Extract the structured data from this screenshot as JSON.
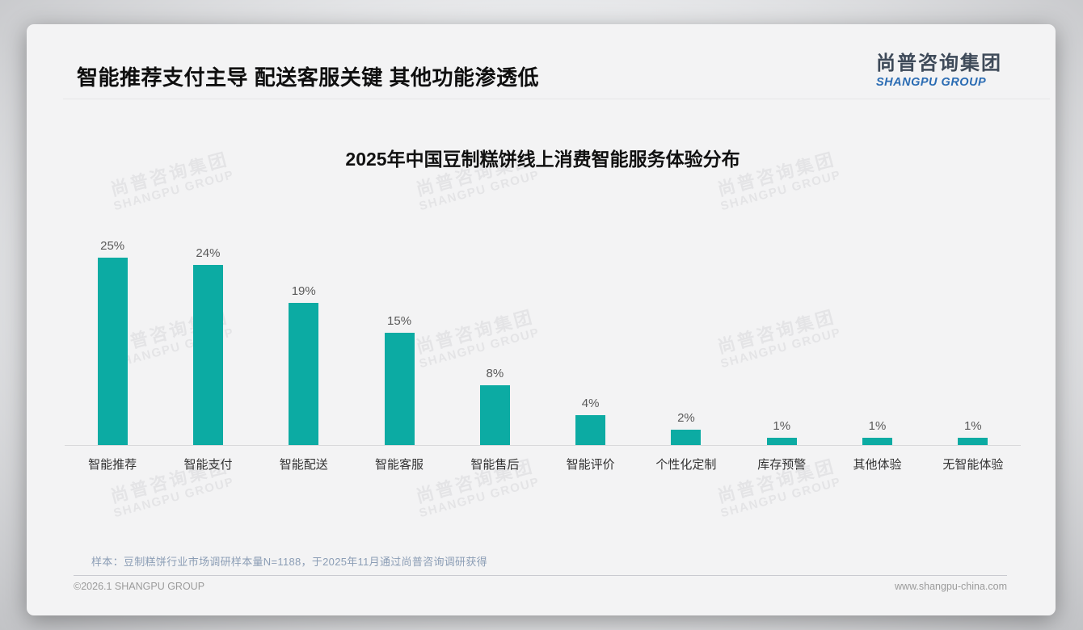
{
  "page": {
    "title": "智能推荐支付主导 配送客服关键 其他功能渗透低",
    "note": "样本：豆制糕饼行业市场调研样本量N=1188，于2025年11月通过尚普咨询调研获得",
    "copyright": "©2026.1 SHANGPU GROUP",
    "website": "www.shangpu-china.com"
  },
  "logo": {
    "cn": "尚普咨询集团",
    "en": "SHANGPU GROUP"
  },
  "watermark": {
    "cn": "尚普咨询集团",
    "en": "SHANGPU GROUP"
  },
  "colors": {
    "bar": "#0caba3",
    "logo_blue": "#2b6cb3",
    "logo_dark": "#3e4a59",
    "note_text": "#8b9db5"
  },
  "chart_data": {
    "type": "bar",
    "title": "2025年中国豆制糕饼线上消费智能服务体验分布",
    "categories": [
      "智能推荐",
      "智能支付",
      "智能配送",
      "智能客服",
      "智能售后",
      "智能评价",
      "个性化定制",
      "库存预警",
      "其他体验",
      "无智能体验"
    ],
    "values": [
      25,
      24,
      19,
      15,
      8,
      4,
      2,
      1,
      1,
      1
    ],
    "value_labels": [
      "25%",
      "24%",
      "19%",
      "15%",
      "8%",
      "4%",
      "2%",
      "1%",
      "1%",
      "1%"
    ],
    "unit": "%",
    "xlabel": "",
    "ylabel": "",
    "ylim": [
      0,
      25
    ],
    "grid": false,
    "legend": false,
    "bar_color": "#0caba3"
  }
}
